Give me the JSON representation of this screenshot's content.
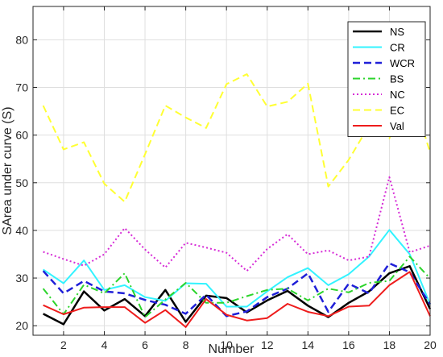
{
  "chart_data": {
    "type": "line",
    "title": "",
    "xlabel": "Number",
    "ylabel": "SArea under curve (S)",
    "xlim": [
      0.5,
      20
    ],
    "ylim": [
      18,
      87
    ],
    "xticks": [
      2,
      4,
      6,
      8,
      10,
      12,
      14,
      16,
      18,
      20
    ],
    "yticks": [
      20,
      30,
      40,
      50,
      60,
      70,
      80
    ],
    "grid": true,
    "legend_position": "top-right",
    "x": [
      1,
      2,
      3,
      4,
      5,
      6,
      7,
      8,
      9,
      10,
      11,
      12,
      13,
      14,
      15,
      16,
      17,
      18,
      19,
      20
    ],
    "series": [
      {
        "name": "NS",
        "color": "#000000",
        "dash": "solid",
        "width": 2.5,
        "values": [
          22.5,
          20.3,
          27.2,
          23.2,
          25.6,
          22.0,
          27.5,
          20.8,
          26.3,
          25.8,
          22.8,
          25.3,
          27.3,
          24.2,
          21.8,
          24.8,
          27.2,
          31.0,
          32.5,
          23.5
        ]
      },
      {
        "name": "CR",
        "color": "#33f3ff",
        "dash": "solid",
        "width": 2,
        "values": [
          31.8,
          28.9,
          33.7,
          27.5,
          28.5,
          26.0,
          25.2,
          28.9,
          28.8,
          24.0,
          24.0,
          27.2,
          30.2,
          32.1,
          28.5,
          30.8,
          34.5,
          40.1,
          35.0,
          24.5
        ]
      },
      {
        "name": "WCR",
        "color": "#1f1fd8",
        "dash": "dashed",
        "width": 2.5,
        "values": [
          31.5,
          26.8,
          29.4,
          27.2,
          26.8,
          25.4,
          24.4,
          22.5,
          26.5,
          22.0,
          23.0,
          26.0,
          27.8,
          31.0,
          22.9,
          28.8,
          26.8,
          33.1,
          31.2,
          24.5
        ]
      },
      {
        "name": "BS",
        "color": "#2bd42b",
        "dash": "dashdot",
        "width": 2,
        "values": [
          27.8,
          22.4,
          28.6,
          26.8,
          31.0,
          21.8,
          25.5,
          29.0,
          24.8,
          24.8,
          26.2,
          27.5,
          27.8,
          25.3,
          27.8,
          27.0,
          29.0,
          29.4,
          34.5,
          29.9
        ]
      },
      {
        "name": "NC",
        "color": "#d62bd6",
        "dash": "dotted",
        "width": 2,
        "values": [
          35.5,
          34.0,
          32.6,
          35.0,
          40.5,
          36.0,
          32.2,
          37.4,
          36.4,
          35.3,
          31.5,
          36.1,
          39.2,
          35.0,
          35.8,
          33.7,
          34.5,
          51.2,
          35.4,
          36.8
        ]
      },
      {
        "name": "EC",
        "color": "#ffff33",
        "dash": "dashed",
        "width": 2,
        "values": [
          66.2,
          57.0,
          58.5,
          49.8,
          46.0,
          56.0,
          66.2,
          63.7,
          61.5,
          70.7,
          72.8,
          66.0,
          67.0,
          70.8,
          49.2,
          54.8,
          62.0,
          59.3,
          70.0,
          56.4
        ]
      },
      {
        "name": "Val",
        "color": "#ee1c1c",
        "dash": "solid",
        "width": 2,
        "values": [
          24.3,
          22.4,
          23.8,
          23.9,
          23.9,
          20.6,
          23.3,
          19.7,
          25.6,
          22.3,
          21.1,
          21.6,
          24.6,
          22.9,
          22.0,
          24.0,
          24.2,
          28.5,
          31.3,
          22.0
        ]
      }
    ]
  }
}
